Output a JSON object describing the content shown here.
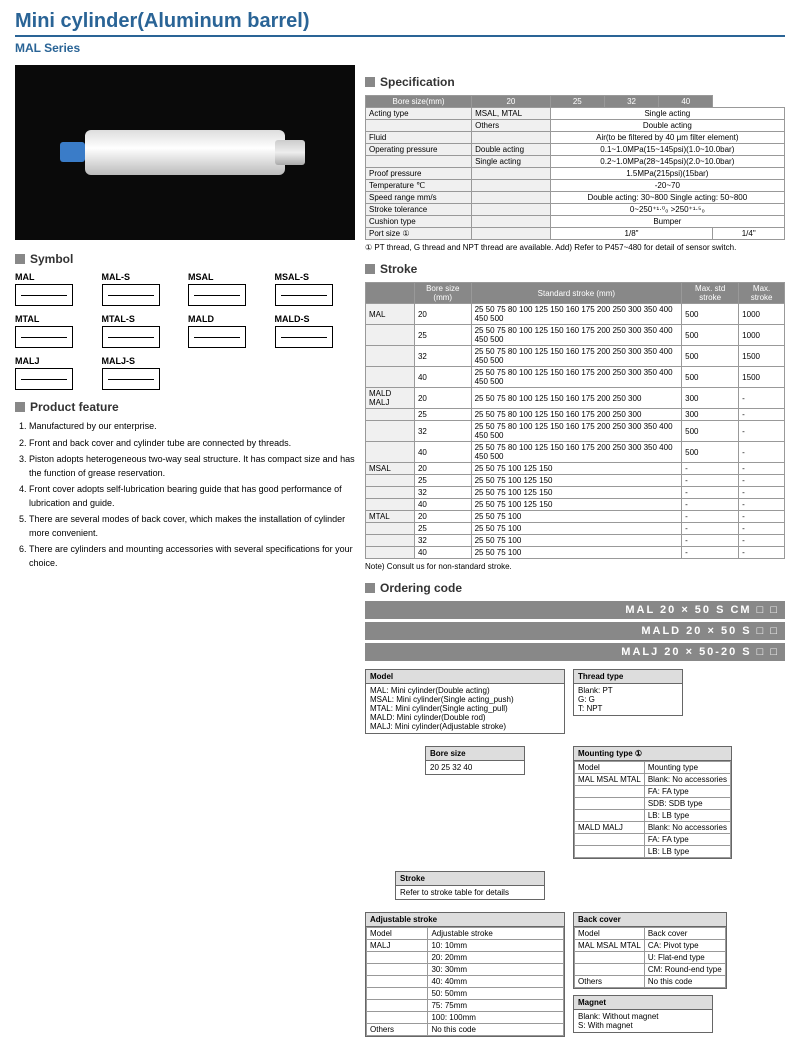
{
  "title": "Mini cylinder(Aluminum barrel)",
  "series": "MAL Series",
  "sections": {
    "specification": "Specification",
    "symbol": "Symbol",
    "feature": "Product feature",
    "stroke": "Stroke",
    "ordering": "Ordering code"
  },
  "symbols": [
    "MAL",
    "MAL-S",
    "MSAL",
    "MSAL-S",
    "MTAL",
    "MTAL-S",
    "MALD",
    "MALD-S",
    "MALJ",
    "MALJ-S"
  ],
  "features": [
    "Manufactured by our enterprise.",
    "Front and back cover and cylinder tube are connected by threads.",
    "Piston adopts heterogeneous two-way seal structure. It has compact size and has the function of grease reservation.",
    "Front cover adopts self-lubrication bearing guide that has good performance of lubrication and guide.",
    "There are several modes of back cover, which makes the installation of cylinder more convenient.",
    "There are cylinders and mounting accessories with several specifications for your choice."
  ],
  "spec": {
    "hdr": [
      "Bore size(mm)",
      "20",
      "25",
      "32",
      "40"
    ],
    "rows": [
      [
        "Acting type",
        "MSAL, MTAL",
        "Single acting",
        "",
        "",
        ""
      ],
      [
        "",
        "Others",
        "Double acting",
        "",
        "",
        ""
      ],
      [
        "Fluid",
        "",
        "Air(to be filtered by 40 μm filter element)",
        "",
        "",
        ""
      ],
      [
        "Operating pressure",
        "Double acting",
        "0.1~1.0MPa(15~145psi)(1.0~10.0bar)",
        "",
        "",
        ""
      ],
      [
        "",
        "Single acting",
        "0.2~1.0MPa(28~145psi)(2.0~10.0bar)",
        "",
        "",
        ""
      ],
      [
        "Proof pressure",
        "",
        "1.5MPa(215psi)(15bar)",
        "",
        "",
        ""
      ],
      [
        "Temperature ℃",
        "",
        "-20~70",
        "",
        "",
        ""
      ],
      [
        "Speed range  mm/s",
        "",
        "Double acting: 30~800   Single acting: 50~800",
        "",
        "",
        ""
      ],
      [
        "Stroke tolerance",
        "",
        "0~250⁺¹·⁰₀  >250⁺¹·⁵₀",
        "",
        "",
        ""
      ],
      [
        "Cushion type",
        "",
        "Bumper",
        "",
        "",
        ""
      ],
      [
        "Port size ①",
        "",
        "1/8\"",
        "",
        "",
        "1/4\""
      ]
    ],
    "note": "① PT thread, G thread and NPT thread are available.   Add) Refer to P457~480 for detail of sensor switch."
  },
  "stroke": {
    "hdr": [
      "",
      "Bore size (mm)",
      "Standard stroke  (mm)",
      "Max. std stroke",
      "Max. stroke"
    ],
    "rows": [
      [
        "MAL",
        "20",
        "25 50 75 80 100 125 150 160 175 200 250 300 350 400 450 500",
        "500",
        "1000"
      ],
      [
        "",
        "25",
        "25 50 75 80 100 125 150 160 175 200 250 300 350 400 450 500",
        "500",
        "1000"
      ],
      [
        "",
        "32",
        "25 50 75 80 100 125 150 160 175 200 250 300 350 400 450 500",
        "500",
        "1500"
      ],
      [
        "",
        "40",
        "25 50 75 80 100 125 150 160 175 200 250 300 350 400 450 500",
        "500",
        "1500"
      ],
      [
        "MALD MALJ",
        "20",
        "25 50 75 80 100 125 150 160 175 200 250 300",
        "300",
        "-"
      ],
      [
        "",
        "25",
        "25 50 75 80 100 125 150 160 175 200 250 300",
        "300",
        "-"
      ],
      [
        "",
        "32",
        "25 50 75 80 100 125 150 160 175 200 250 300 350 400 450 500",
        "500",
        "-"
      ],
      [
        "",
        "40",
        "25 50 75 80 100 125 150 160 175 200 250 300 350 400 450 500",
        "500",
        "-"
      ],
      [
        "MSAL",
        "20",
        "25 50 75 100 125 150",
        "-",
        "-"
      ],
      [
        "",
        "25",
        "25 50 75 100 125 150",
        "-",
        "-"
      ],
      [
        "",
        "32",
        "25 50 75 100 125 150",
        "-",
        "-"
      ],
      [
        "",
        "40",
        "25 50 75 100 125 150",
        "-",
        "-"
      ],
      [
        "MTAL",
        "20",
        "25 50 75 100",
        "-",
        "-"
      ],
      [
        "",
        "25",
        "25 50 75 100",
        "-",
        "-"
      ],
      [
        "",
        "32",
        "25 50 75 100",
        "-",
        "-"
      ],
      [
        "",
        "40",
        "25 50 75 100",
        "-",
        "-"
      ]
    ],
    "note": "Note) Consult us for non-standard stroke."
  },
  "orderBars": [
    "MAL  20 × 50    S CM □ □",
    "MALD 20 × 50    S    □ □",
    "MALJ 20 × 50-20 S    □ □"
  ],
  "exp": {
    "model": {
      "h": "Model",
      "rows": [
        "MAL: Mini cylinder(Double acting)",
        "MSAL: Mini cylinder(Single acting_push)",
        "MTAL: Mini cylinder(Single acting_pull)",
        "MALD: Mini cylinder(Double rod)",
        "MALJ: Mini cylinder(Adjustable stroke)"
      ]
    },
    "bore": {
      "h": "Bore size",
      "t": "20 25 32 40"
    },
    "strokeRef": {
      "h": "Stroke",
      "t": "Refer to stroke table for details"
    },
    "adj": {
      "h": "Adjustable stroke",
      "rows": [
        [
          "Model",
          "Adjustable stroke"
        ],
        [
          "MALJ",
          "10: 10mm"
        ],
        [
          "",
          "20: 20mm"
        ],
        [
          "",
          "30: 30mm"
        ],
        [
          "",
          "40: 40mm"
        ],
        [
          "",
          "50: 50mm"
        ],
        [
          "",
          "75: 75mm"
        ],
        [
          "",
          "100: 100mm"
        ],
        [
          "Others",
          "No this code"
        ]
      ]
    },
    "thread": {
      "h": "Thread type",
      "rows": [
        "Blank: PT",
        "G: G",
        "T: NPT"
      ]
    },
    "mount": {
      "h": "Mounting type  ①",
      "rows": [
        [
          "Model",
          "Mounting type"
        ],
        [
          "MAL MSAL MTAL",
          "Blank: No accessories"
        ],
        [
          "",
          "FA: FA type"
        ],
        [
          "",
          "SDB: SDB type"
        ],
        [
          "",
          "LB: LB type"
        ],
        [
          "MALD MALJ",
          "Blank: No accessories"
        ],
        [
          "",
          "FA: FA type"
        ],
        [
          "",
          "LB: LB type"
        ]
      ]
    },
    "back": {
      "h": "Back cover",
      "rows": [
        [
          "Model",
          "Back cover"
        ],
        [
          "MAL MSAL MTAL",
          "CA: Pivot type"
        ],
        [
          "",
          "U: Flat-end type"
        ],
        [
          "",
          "CM: Round-end type"
        ],
        [
          "Others",
          "No this code"
        ]
      ]
    },
    "magnet": {
      "h": "Magnet",
      "rows": [
        "Blank: Without magnet",
        "S: With magnet"
      ]
    }
  }
}
